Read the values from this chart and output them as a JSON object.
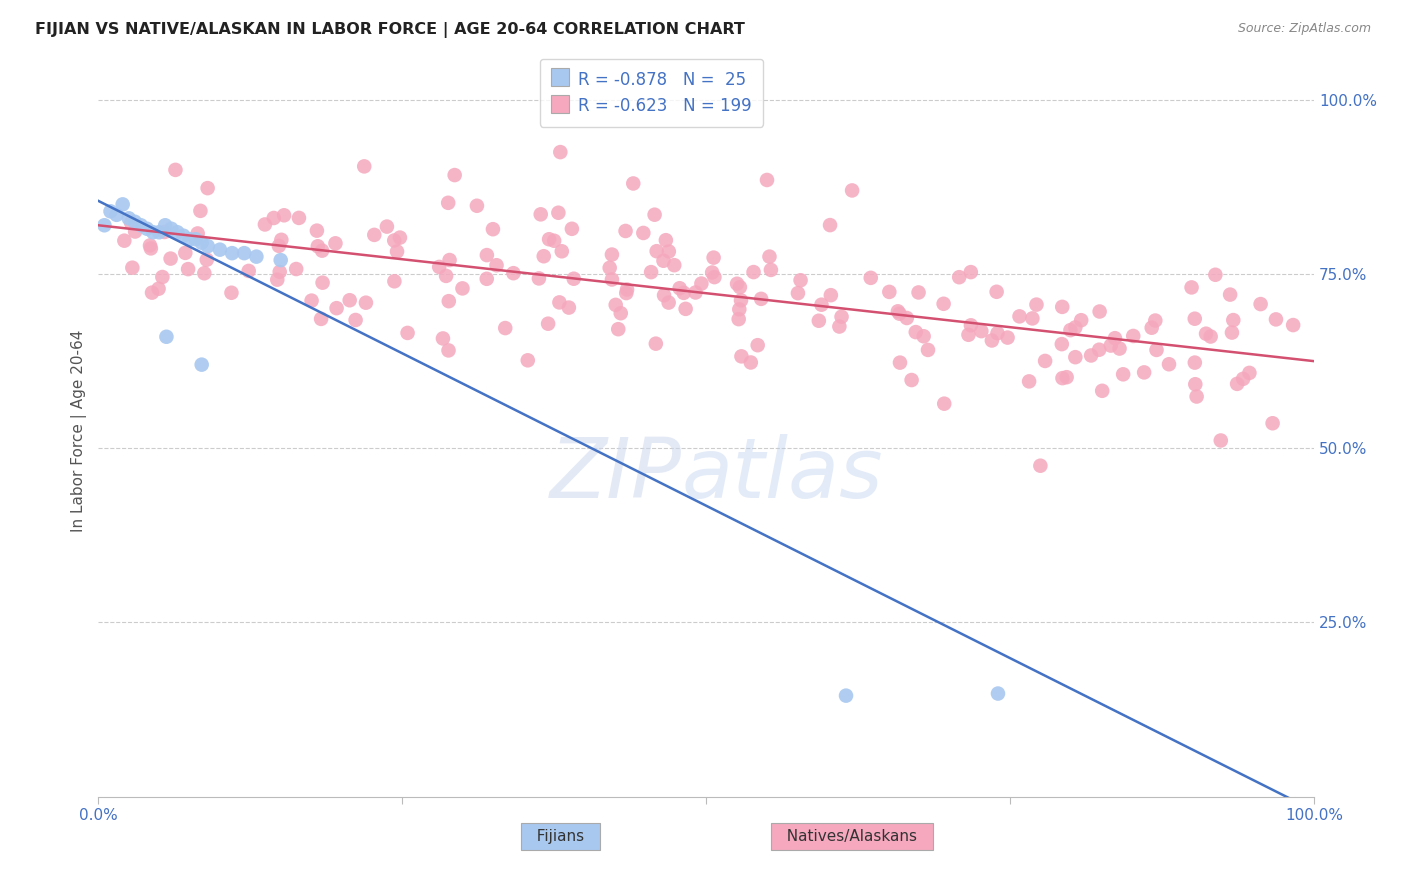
{
  "title": "FIJIAN VS NATIVE/ALASKAN IN LABOR FORCE | AGE 20-64 CORRELATION CHART",
  "source_text": "Source: ZipAtlas.com",
  "ylabel": "In Labor Force | Age 20-64",
  "xlim": [
    0.0,
    1.0
  ],
  "ylim": [
    0.0,
    1.05
  ],
  "xtick_positions": [
    0.0,
    0.25,
    0.5,
    0.75,
    1.0
  ],
  "xtick_labels": [
    "0.0%",
    "",
    "",
    "",
    "100.0%"
  ],
  "ytick_positions": [
    0.25,
    0.5,
    0.75,
    1.0
  ],
  "ytick_labels": [
    "25.0%",
    "50.0%",
    "75.0%",
    "100.0%"
  ],
  "blue_scatter_color": "#a8c8f0",
  "pink_scatter_color": "#f5a8be",
  "blue_line_color": "#4472c4",
  "pink_line_color": "#d45070",
  "blue_R": -0.878,
  "blue_N": 25,
  "pink_R": -0.623,
  "pink_N": 199,
  "legend_label_blue": "Fijians",
  "legend_label_pink": "Natives/Alaskans",
  "title_color": "#222222",
  "tick_label_color": "#4472c4",
  "ylabel_color": "#555555",
  "source_color": "#888888",
  "grid_color": "#cccccc",
  "blue_line_intercept": 0.855,
  "blue_line_slope": -0.875,
  "pink_line_intercept": 0.82,
  "pink_line_slope": -0.195
}
